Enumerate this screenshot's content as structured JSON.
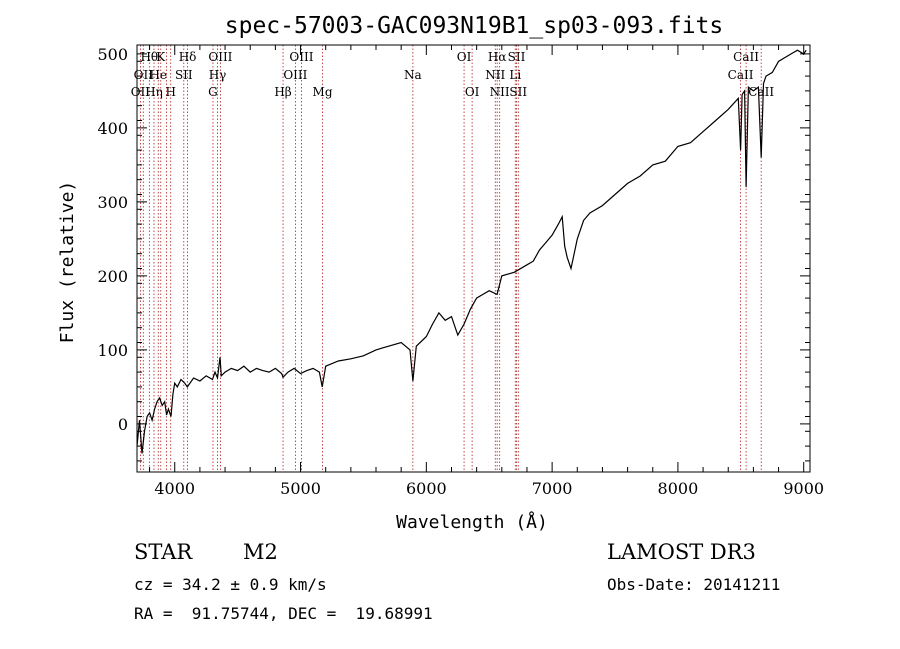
{
  "chart_data": {
    "type": "line",
    "title": "spec-57003-GAC093N19B1_sp03-093.fits",
    "xlabel": "Wavelength (Å)",
    "ylabel": "Flux (relative)",
    "xlim": [
      3700,
      9050
    ],
    "ylim": [
      -65,
      512
    ],
    "xticks": [
      4000,
      5000,
      6000,
      7000,
      8000,
      9000
    ],
    "xtick_labels": [
      "4000",
      "5000",
      "6000",
      "7000",
      "8000",
      "9000"
    ],
    "yticks": [
      0,
      100,
      200,
      300,
      400,
      500
    ],
    "ytick_labels": [
      "0",
      "100",
      "200",
      "300",
      "400",
      "500"
    ],
    "series": [
      {
        "name": "spectrum",
        "color": "#000000",
        "points": [
          [
            3700,
            -30
          ],
          [
            3720,
            5
          ],
          [
            3740,
            -40
          ],
          [
            3760,
            -10
          ],
          [
            3780,
            10
          ],
          [
            3800,
            15
          ],
          [
            3820,
            5
          ],
          [
            3840,
            20
          ],
          [
            3860,
            30
          ],
          [
            3880,
            35
          ],
          [
            3900,
            25
          ],
          [
            3920,
            30
          ],
          [
            3935,
            12
          ],
          [
            3950,
            20
          ],
          [
            3970,
            10
          ],
          [
            3985,
            40
          ],
          [
            4000,
            55
          ],
          [
            4020,
            50
          ],
          [
            4050,
            60
          ],
          [
            4080,
            55
          ],
          [
            4100,
            50
          ],
          [
            4150,
            62
          ],
          [
            4200,
            58
          ],
          [
            4250,
            65
          ],
          [
            4300,
            60
          ],
          [
            4320,
            70
          ],
          [
            4340,
            62
          ],
          [
            4360,
            90
          ],
          [
            4370,
            65
          ],
          [
            4400,
            70
          ],
          [
            4450,
            75
          ],
          [
            4500,
            72
          ],
          [
            4550,
            78
          ],
          [
            4600,
            70
          ],
          [
            4650,
            75
          ],
          [
            4700,
            72
          ],
          [
            4750,
            70
          ],
          [
            4800,
            75
          ],
          [
            4850,
            68
          ],
          [
            4861,
            63
          ],
          [
            4900,
            70
          ],
          [
            4950,
            75
          ],
          [
            5000,
            68
          ],
          [
            5050,
            72
          ],
          [
            5100,
            75
          ],
          [
            5150,
            70
          ],
          [
            5172,
            50
          ],
          [
            5200,
            78
          ],
          [
            5300,
            85
          ],
          [
            5400,
            88
          ],
          [
            5500,
            92
          ],
          [
            5600,
            100
          ],
          [
            5700,
            105
          ],
          [
            5800,
            110
          ],
          [
            5870,
            100
          ],
          [
            5893,
            58
          ],
          [
            5920,
            105
          ],
          [
            6000,
            118
          ],
          [
            6050,
            135
          ],
          [
            6100,
            150
          ],
          [
            6150,
            140
          ],
          [
            6200,
            145
          ],
          [
            6250,
            120
          ],
          [
            6300,
            135
          ],
          [
            6350,
            155
          ],
          [
            6400,
            170
          ],
          [
            6450,
            175
          ],
          [
            6500,
            180
          ],
          [
            6563,
            175
          ],
          [
            6600,
            200
          ],
          [
            6700,
            205
          ],
          [
            6800,
            215
          ],
          [
            6850,
            220
          ],
          [
            6900,
            235
          ],
          [
            6950,
            245
          ],
          [
            7000,
            255
          ],
          [
            7050,
            270
          ],
          [
            7080,
            280
          ],
          [
            7100,
            240
          ],
          [
            7120,
            225
          ],
          [
            7150,
            210
          ],
          [
            7200,
            250
          ],
          [
            7250,
            275
          ],
          [
            7300,
            285
          ],
          [
            7400,
            295
          ],
          [
            7500,
            310
          ],
          [
            7600,
            325
          ],
          [
            7700,
            335
          ],
          [
            7800,
            350
          ],
          [
            7900,
            355
          ],
          [
            8000,
            375
          ],
          [
            8100,
            380
          ],
          [
            8200,
            395
          ],
          [
            8300,
            410
          ],
          [
            8400,
            425
          ],
          [
            8480,
            440
          ],
          [
            8498,
            370
          ],
          [
            8510,
            445
          ],
          [
            8530,
            450
          ],
          [
            8542,
            320
          ],
          [
            8560,
            455
          ],
          [
            8600,
            450
          ],
          [
            8640,
            455
          ],
          [
            8662,
            360
          ],
          [
            8680,
            460
          ],
          [
            8700,
            470
          ],
          [
            8750,
            475
          ],
          [
            8800,
            490
          ],
          [
            8850,
            495
          ],
          [
            8900,
            500
          ],
          [
            8950,
            505
          ],
          [
            9000,
            500
          ],
          [
            9020,
            505
          ]
        ]
      }
    ],
    "lines": [
      {
        "wavelength": 3727,
        "label": "OII",
        "row": 2
      },
      {
        "wavelength": 3750,
        "label": "OII",
        "row": 1
      },
      {
        "wavelength": 3798,
        "label": "Hθ",
        "row": 0
      },
      {
        "wavelength": 3835,
        "label": "Hη",
        "row": 2
      },
      {
        "wavelength": 3869,
        "label": "He",
        "row": 1
      },
      {
        "wavelength": 3889,
        "label": "K",
        "row": 0
      },
      {
        "wavelength": 3934,
        "label": "",
        "row": 0
      },
      {
        "wavelength": 3968,
        "label": "H",
        "row": 2
      },
      {
        "wavelength": 4072,
        "label": "SII",
        "row": 1
      },
      {
        "wavelength": 4102,
        "label": "Hδ",
        "row": 0
      },
      {
        "wavelength": 4304,
        "label": "G",
        "row": 2
      },
      {
        "wavelength": 4340,
        "label": "Hγ",
        "row": 1
      },
      {
        "wavelength": 4363,
        "label": "OIII",
        "row": 0
      },
      {
        "wavelength": 4861,
        "label": "Hβ",
        "row": 2
      },
      {
        "wavelength": 4959,
        "label": "OIII",
        "row": 1
      },
      {
        "wavelength": 5007,
        "label": "OIII",
        "row": 0
      },
      {
        "wavelength": 5175,
        "label": "Mg",
        "row": 2
      },
      {
        "wavelength": 5893,
        "label": "Na",
        "row": 1
      },
      {
        "wavelength": 6300,
        "label": "OI",
        "row": 0
      },
      {
        "wavelength": 6364,
        "label": "OI",
        "row": 2
      },
      {
        "wavelength": 6548,
        "label": "NII",
        "row": 1
      },
      {
        "wavelength": 6563,
        "label": "Hα",
        "row": 0
      },
      {
        "wavelength": 6583,
        "label": "NII",
        "row": 2
      },
      {
        "wavelength": 6707,
        "label": "Li",
        "row": 1
      },
      {
        "wavelength": 6717,
        "label": "SII",
        "row": 0
      },
      {
        "wavelength": 6731,
        "label": "SII",
        "row": 2
      },
      {
        "wavelength": 8498,
        "label": "CaII",
        "row": 1
      },
      {
        "wavelength": 8542,
        "label": "CaII",
        "row": 0
      },
      {
        "wavelength": 8662,
        "label": "CaII",
        "row": 2
      }
    ],
    "line_color": "#b02020"
  },
  "info": {
    "class_label": "STAR",
    "subclass_label": "M2",
    "survey_label": "LAMOST DR3",
    "redshift_line": "cz = 34.2 ± 0.9 km/s",
    "obsdate_line": "Obs-Date: 20141211",
    "coords_line": "RA =  91.75744, DEC =  19.68991"
  }
}
